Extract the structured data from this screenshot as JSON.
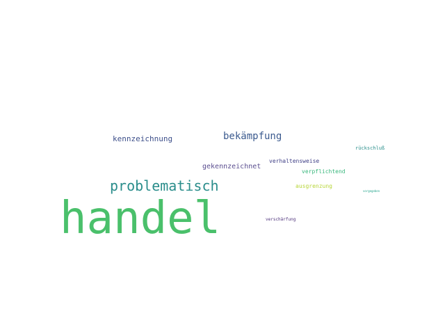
{
  "cloud": {
    "words": [
      {
        "text": "handel",
        "color": "#4ac06b"
      },
      {
        "text": "problematisch",
        "color": "#2a8d8b"
      },
      {
        "text": "bekämpfung",
        "color": "#3b5a8e"
      },
      {
        "text": "kennzeichnung",
        "color": "#3d4f8a"
      },
      {
        "text": "gekennzeichnet",
        "color": "#5a4d8f"
      },
      {
        "text": "verhaltensweise",
        "color": "#3f3f86"
      },
      {
        "text": "verpflichtend",
        "color": "#38b77c"
      },
      {
        "text": "ausgrenzung",
        "color": "#b8d63a"
      },
      {
        "text": "rückschluß",
        "color": "#2b8f8c"
      },
      {
        "text": "verschärfung",
        "color": "#4b2f7a"
      },
      {
        "text": "vorgegeben",
        "color": "#21a38a"
      }
    ]
  }
}
